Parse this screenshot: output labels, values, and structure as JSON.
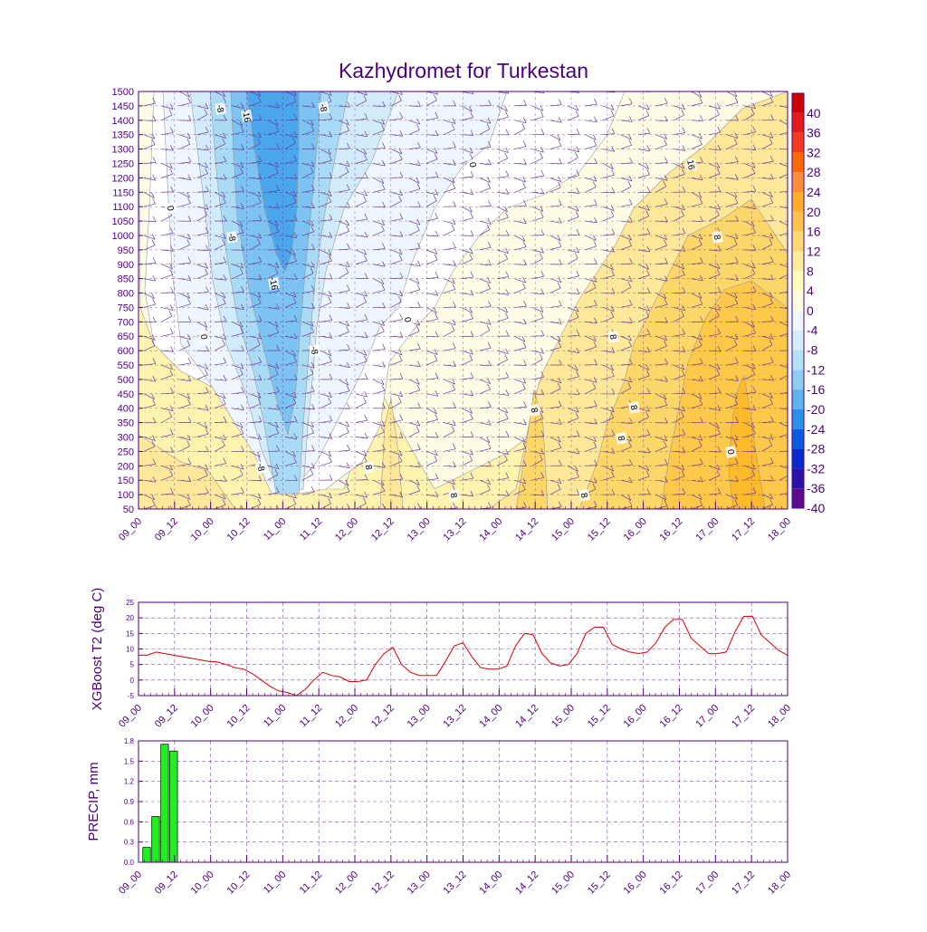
{
  "title": "Kazhydromet for Turkestan",
  "time_labels": [
    "09_00",
    "09_12",
    "10_00",
    "10_12",
    "11_00",
    "11_12",
    "12_00",
    "12_12",
    "13_00",
    "13_12",
    "14_00",
    "14_12",
    "15_00",
    "15_12",
    "16_00",
    "16_12",
    "17_00",
    "17_12",
    "18_00"
  ],
  "chart_data": [
    {
      "type": "heatmap",
      "name": "temperature-cross-section",
      "title": "Kazhydromet for Turkestan",
      "x_ticks": [
        "09_00",
        "09_12",
        "10_00",
        "10_12",
        "11_00",
        "11_12",
        "12_00",
        "12_12",
        "13_00",
        "13_12",
        "14_00",
        "14_12",
        "15_00",
        "15_12",
        "16_00",
        "16_12",
        "17_00",
        "17_12",
        "18_00"
      ],
      "y_ticks": [
        "1500",
        "1450",
        "1400",
        "1350",
        "1300",
        "1250",
        "1200",
        "1150",
        "1100",
        "1050",
        "1000",
        "950",
        "900",
        "850",
        "800",
        "750",
        "700",
        "650",
        "600",
        "550",
        "500",
        "450",
        "400",
        "350",
        "300",
        "250",
        "200",
        "150",
        "100",
        "50"
      ],
      "ylim": [
        50,
        1500
      ],
      "colorbar_levels": [
        "40",
        "36",
        "32",
        "28",
        "24",
        "20",
        "16",
        "12",
        "8",
        "4",
        "0",
        "-4",
        "-8",
        "-12",
        "-16",
        "-20",
        "-24",
        "-28",
        "-32",
        "-36",
        "-40"
      ],
      "colorbar_colors": [
        "#cc0000",
        "#e31a1c",
        "#f03b20",
        "#fd6a02",
        "#fd8d3c",
        "#feae2a",
        "#fec44f",
        "#fed976",
        "#ffeda0",
        "#ffffbf",
        "#fffde0",
        "#f0f8ff",
        "#d6eefb",
        "#b5e1f7",
        "#8fcef2",
        "#5fb4ee",
        "#2f8fe8",
        "#0a5de0",
        "#0a2bcc",
        "#2a12a8",
        "#5b0b8c"
      ],
      "contour_labels": [
        "-8",
        "-16",
        "-8",
        "0",
        "-8",
        "-16",
        "0",
        "-8",
        "-8",
        "0",
        "0",
        "8",
        "8",
        "8",
        "8",
        "8",
        "8",
        "16",
        "0",
        "8",
        "8"
      ]
    },
    {
      "type": "line",
      "name": "xgboost-t2",
      "ylabel": "XGBoost T2 (deg C)",
      "y_ticks": [
        "25",
        "20",
        "15",
        "10",
        "5",
        "0",
        "-5"
      ],
      "ylim": [
        -5,
        25
      ],
      "series": [
        {
          "name": "T2",
          "color": "#e00000",
          "values": [
            8,
            8,
            9,
            8.5,
            8,
            7.5,
            7,
            6.5,
            6,
            5.8,
            5,
            4,
            3.5,
            2,
            0,
            -2,
            -3.5,
            -4,
            -5,
            -3,
            0,
            2.5,
            1.5,
            1,
            -0.5,
            -0.5,
            0,
            5,
            8.5,
            10.5,
            5,
            2.5,
            1.5,
            1.5,
            1.5,
            6,
            11,
            12,
            7.5,
            4,
            3.5,
            3.5,
            4.5,
            11,
            15,
            14.5,
            8.5,
            5.5,
            4.5,
            5,
            8.5,
            15,
            17,
            17,
            11.5,
            10,
            9,
            8.5,
            9,
            12,
            17,
            19.5,
            19.5,
            13.5,
            11,
            8.5,
            8.5,
            9,
            15.5,
            20.5,
            20.5,
            14.5,
            12,
            9.5,
            8
          ]
        }
      ]
    },
    {
      "type": "bar",
      "name": "precip",
      "ylabel": "PRECIP, mm",
      "y_ticks": [
        "1.8",
        "1.5",
        "1.2",
        "0.9",
        "0.6",
        "0.3",
        "0.0"
      ],
      "ylim": [
        0,
        1.8
      ],
      "color": "#22ee22",
      "values": [
        0.22,
        0.68,
        1.75,
        1.65
      ]
    }
  ]
}
